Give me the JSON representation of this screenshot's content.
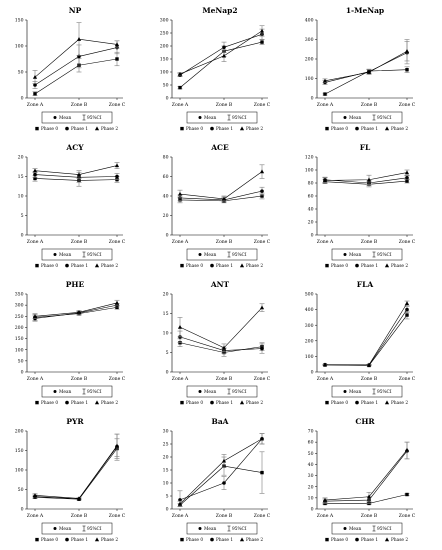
{
  "figure": {
    "legend_labels": {
      "mean": "Mean",
      "ci": "95%CI",
      "phase0": "Phase 0",
      "phase1": "Phase 1",
      "phase2": "Phase 2"
    },
    "colors": {
      "line": "#000000",
      "errorbar": "#7f7f7f",
      "background": "#ffffff"
    }
  },
  "chart_data": [
    {
      "type": "line",
      "title": "NP",
      "categories": [
        "Zone A",
        "Zone B",
        "Zone C"
      ],
      "ylim": [
        0,
        150
      ],
      "yticks": [
        0,
        50,
        100,
        150
      ],
      "series": [
        {
          "name": "Phase 0",
          "marker": "square",
          "values": [
            8,
            63,
            75
          ],
          "ci_low": [
            5,
            50,
            62
          ],
          "ci_high": [
            12,
            76,
            88
          ]
        },
        {
          "name": "Phase 1",
          "marker": "circle",
          "values": [
            25,
            80,
            97
          ],
          "ci_low": [
            18,
            58,
            85
          ],
          "ci_high": [
            32,
            102,
            110
          ]
        },
        {
          "name": "Phase 2",
          "marker": "triangle",
          "values": [
            40,
            113,
            103
          ],
          "ci_low": [
            28,
            82,
            96
          ],
          "ci_high": [
            53,
            145,
            110
          ]
        }
      ]
    },
    {
      "type": "line",
      "title": "MeNap2",
      "categories": [
        "Zone A",
        "Zone B",
        "Zone C"
      ],
      "ylim": [
        0,
        300
      ],
      "yticks": [
        0,
        50,
        100,
        150,
        200,
        250,
        300
      ],
      "series": [
        {
          "name": "Phase 0",
          "marker": "square",
          "values": [
            40,
            180,
            215
          ],
          "ci_low": [
            35,
            160,
            205
          ],
          "ci_high": [
            45,
            200,
            225
          ]
        },
        {
          "name": "Phase 1",
          "marker": "circle",
          "values": [
            88,
            195,
            245
          ],
          "ci_low": [
            82,
            175,
            225
          ],
          "ci_high": [
            95,
            215,
            265
          ]
        },
        {
          "name": "Phase 2",
          "marker": "triangle",
          "values": [
            92,
            162,
            258
          ],
          "ci_low": [
            85,
            140,
            238
          ],
          "ci_high": [
            98,
            185,
            278
          ]
        }
      ]
    },
    {
      "type": "line",
      "title": "1-MeNap",
      "categories": [
        "Zone A",
        "Zone B",
        "Zone C"
      ],
      "ylim": [
        0,
        400
      ],
      "yticks": [
        0,
        100,
        200,
        300,
        400
      ],
      "series": [
        {
          "name": "Phase 0",
          "marker": "square",
          "values": [
            20,
            138,
            145
          ],
          "ci_low": [
            15,
            128,
            130
          ],
          "ci_high": [
            25,
            148,
            160
          ]
        },
        {
          "name": "Phase 1",
          "marker": "circle",
          "values": [
            80,
            135,
            232
          ],
          "ci_low": [
            70,
            125,
            175
          ],
          "ci_high": [
            90,
            145,
            290
          ]
        },
        {
          "name": "Phase 2",
          "marker": "triangle",
          "values": [
            88,
            132,
            240
          ],
          "ci_low": [
            78,
            120,
            190
          ],
          "ci_high": [
            98,
            145,
            300
          ]
        }
      ]
    },
    {
      "type": "line",
      "title": "ACY",
      "categories": [
        "Zone A",
        "Zone B",
        "Zone C"
      ],
      "ylim": [
        0,
        20
      ],
      "yticks": [
        0,
        5,
        10,
        15,
        20
      ],
      "series": [
        {
          "name": "Phase 0",
          "marker": "square",
          "values": [
            14.5,
            14.0,
            14.2
          ],
          "ci_low": [
            13.8,
            12.5,
            13.5
          ],
          "ci_high": [
            15.2,
            15.5,
            15.0
          ]
        },
        {
          "name": "Phase 1",
          "marker": "circle",
          "values": [
            15.5,
            14.8,
            15.0
          ],
          "ci_low": [
            14.8,
            13.5,
            14.2
          ],
          "ci_high": [
            16.2,
            16.1,
            15.8
          ]
        },
        {
          "name": "Phase 2",
          "marker": "triangle",
          "values": [
            16.5,
            15.5,
            17.8
          ],
          "ci_low": [
            16.0,
            14.5,
            17.0
          ],
          "ci_high": [
            17.0,
            16.5,
            18.6
          ]
        }
      ]
    },
    {
      "type": "line",
      "title": "ACE",
      "categories": [
        "Zone A",
        "Zone B",
        "Zone C"
      ],
      "ylim": [
        0,
        80
      ],
      "yticks": [
        0,
        20,
        40,
        60,
        80
      ],
      "series": [
        {
          "name": "Phase 0",
          "marker": "square",
          "values": [
            36,
            35,
            40
          ],
          "ci_low": [
            33,
            33,
            37
          ],
          "ci_high": [
            39,
            38,
            43
          ]
        },
        {
          "name": "Phase 1",
          "marker": "circle",
          "values": [
            38,
            36,
            45
          ],
          "ci_low": [
            35,
            34,
            41
          ],
          "ci_high": [
            41,
            39,
            49
          ]
        },
        {
          "name": "Phase 2",
          "marker": "triangle",
          "values": [
            42,
            37,
            65
          ],
          "ci_low": [
            38,
            35,
            58
          ],
          "ci_high": [
            46,
            40,
            72
          ]
        }
      ]
    },
    {
      "type": "line",
      "title": "FL",
      "categories": [
        "Zone A",
        "Zone B",
        "Zone C"
      ],
      "ylim": [
        0,
        120
      ],
      "yticks": [
        0,
        20,
        40,
        60,
        80,
        100,
        120
      ],
      "series": [
        {
          "name": "Phase 0",
          "marker": "square",
          "values": [
            82,
            78,
            83
          ],
          "ci_low": [
            79,
            74,
            80
          ],
          "ci_high": [
            85,
            82,
            86
          ]
        },
        {
          "name": "Phase 1",
          "marker": "circle",
          "values": [
            85,
            80,
            88
          ],
          "ci_low": [
            81,
            76,
            85
          ],
          "ci_high": [
            89,
            84,
            91
          ]
        },
        {
          "name": "Phase 2",
          "marker": "triangle",
          "values": [
            84,
            85,
            96
          ],
          "ci_low": [
            80,
            78,
            92
          ],
          "ci_high": [
            88,
            92,
            100
          ]
        }
      ]
    },
    {
      "type": "line",
      "title": "PHE",
      "categories": [
        "Zone A",
        "Zone B",
        "Zone C"
      ],
      "ylim": [
        0,
        350
      ],
      "yticks": [
        0,
        50,
        100,
        150,
        200,
        250,
        300,
        350
      ],
      "series": [
        {
          "name": "Phase 0",
          "marker": "square",
          "values": [
            245,
            262,
            290
          ],
          "ci_low": [
            232,
            255,
            282
          ],
          "ci_high": [
            258,
            270,
            298
          ]
        },
        {
          "name": "Phase 1",
          "marker": "circle",
          "values": [
            240,
            265,
            300
          ],
          "ci_low": [
            228,
            258,
            292
          ],
          "ci_high": [
            252,
            272,
            308
          ]
        },
        {
          "name": "Phase 2",
          "marker": "triangle",
          "values": [
            250,
            268,
            310
          ],
          "ci_low": [
            240,
            260,
            300
          ],
          "ci_high": [
            262,
            276,
            322
          ]
        }
      ]
    },
    {
      "type": "line",
      "title": "ANT",
      "categories": [
        "Zone A",
        "Zone B",
        "Zone C"
      ],
      "ylim": [
        0,
        20
      ],
      "yticks": [
        0,
        5,
        10,
        15,
        20
      ],
      "series": [
        {
          "name": "Phase 0",
          "marker": "square",
          "values": [
            7.5,
            5.0,
            6.5
          ],
          "ci_low": [
            6.5,
            4.0,
            5.5
          ],
          "ci_high": [
            8.5,
            6.0,
            7.5
          ]
        },
        {
          "name": "Phase 1",
          "marker": "circle",
          "values": [
            9.0,
            5.5,
            6.0
          ],
          "ci_low": [
            7.5,
            4.8,
            4.8
          ],
          "ci_high": [
            10.5,
            6.2,
            7.2
          ]
        },
        {
          "name": "Phase 2",
          "marker": "triangle",
          "values": [
            11.5,
            6.2,
            16.5
          ],
          "ci_low": [
            9.0,
            5.2,
            15.5
          ],
          "ci_high": [
            14.0,
            7.2,
            17.5
          ]
        }
      ]
    },
    {
      "type": "line",
      "title": "FLA",
      "categories": [
        "Zone A",
        "Zone B",
        "Zone C"
      ],
      "ylim": [
        0,
        500
      ],
      "yticks": [
        0,
        100,
        200,
        300,
        400,
        500
      ],
      "series": [
        {
          "name": "Phase 0",
          "marker": "square",
          "values": [
            45,
            42,
            365
          ],
          "ci_low": [
            42,
            39,
            340
          ],
          "ci_high": [
            48,
            45,
            390
          ]
        },
        {
          "name": "Phase 1",
          "marker": "circle",
          "values": [
            46,
            44,
            400
          ],
          "ci_low": [
            43,
            41,
            380
          ],
          "ci_high": [
            49,
            47,
            420
          ]
        },
        {
          "name": "Phase 2",
          "marker": "triangle",
          "values": [
            47,
            46,
            440
          ],
          "ci_low": [
            44,
            43,
            425
          ],
          "ci_high": [
            50,
            49,
            455
          ]
        }
      ]
    },
    {
      "type": "line",
      "title": "PYR",
      "categories": [
        "Zone A",
        "Zone B",
        "Zone C"
      ],
      "ylim": [
        0,
        200
      ],
      "yticks": [
        0,
        50,
        100,
        150,
        200
      ],
      "series": [
        {
          "name": "Phase 0",
          "marker": "square",
          "values": [
            30,
            25,
            155
          ],
          "ci_low": [
            27,
            23,
            130
          ],
          "ci_high": [
            33,
            27,
            180
          ]
        },
        {
          "name": "Phase 1",
          "marker": "circle",
          "values": [
            32,
            26,
            160
          ],
          "ci_low": [
            28,
            24,
            125
          ],
          "ci_high": [
            36,
            28,
            192
          ]
        },
        {
          "name": "Phase 2",
          "marker": "triangle",
          "values": [
            35,
            27,
            162
          ],
          "ci_low": [
            31,
            25,
            135
          ],
          "ci_high": [
            39,
            29,
            192
          ]
        }
      ]
    },
    {
      "type": "line",
      "title": "BaA",
      "categories": [
        "Zone A",
        "Zone B",
        "Zone C"
      ],
      "ylim": [
        0,
        30
      ],
      "yticks": [
        0,
        5,
        10,
        15,
        20,
        25,
        30
      ],
      "series": [
        {
          "name": "Phase 0",
          "marker": "square",
          "values": [
            1.5,
            16.5,
            14.0
          ],
          "ci_low": [
            1.0,
            13.0,
            6.0
          ],
          "ci_high": [
            2.0,
            20.0,
            22.0
          ]
        },
        {
          "name": "Phase 1",
          "marker": "circle",
          "values": [
            3.5,
            10.0,
            27.0
          ],
          "ci_low": [
            1.0,
            7.5,
            25.0
          ],
          "ci_high": [
            7.0,
            12.5,
            29.0
          ]
        },
        {
          "name": "Phase 2",
          "marker": "triangle",
          "values": [
            2.0,
            18.5,
            27.0
          ],
          "ci_low": [
            1.0,
            16.0,
            25.0
          ],
          "ci_high": [
            3.0,
            21.0,
            29.0
          ]
        }
      ]
    },
    {
      "type": "line",
      "title": "CHR",
      "categories": [
        "Zone A",
        "Zone B",
        "Zone C"
      ],
      "ylim": [
        0,
        70
      ],
      "yticks": [
        0,
        10,
        20,
        30,
        40,
        50,
        60,
        70
      ],
      "series": [
        {
          "name": "Phase 0",
          "marker": "square",
          "values": [
            5,
            5,
            13
          ],
          "ci_low": [
            4,
            4,
            12
          ],
          "ci_high": [
            6,
            6,
            14
          ]
        },
        {
          "name": "Phase 1",
          "marker": "circle",
          "values": [
            7,
            8,
            52
          ],
          "ci_low": [
            5,
            5,
            45
          ],
          "ci_high": [
            9,
            11,
            60
          ]
        },
        {
          "name": "Phase 2",
          "marker": "triangle",
          "values": [
            8,
            11,
            53
          ],
          "ci_low": [
            6,
            7,
            45
          ],
          "ci_high": [
            10,
            15,
            60
          ]
        }
      ]
    }
  ]
}
